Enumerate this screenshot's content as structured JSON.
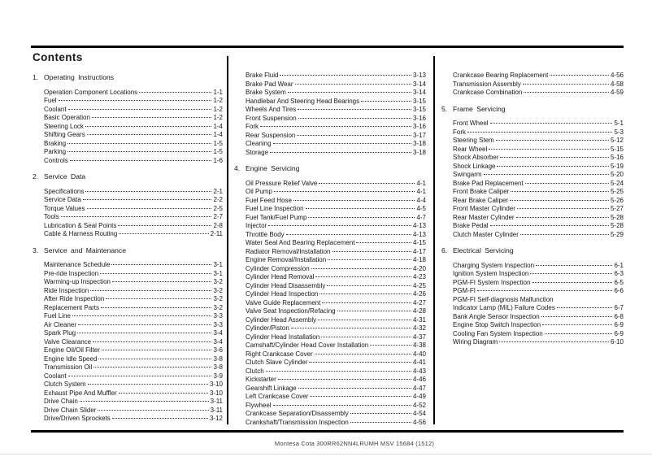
{
  "doc_title": "Contents",
  "footer_text": "Montesa Cota 300RR62NN4LRUMH MSV 15684 (1512)",
  "columns": [
    {
      "blocks": [
        {
          "section": {
            "number": "1.",
            "title": "Operating Instructions"
          }
        },
        {
          "items": [
            {
              "label": "Operation Component Locations",
              "page": "1-1"
            },
            {
              "label": "Fuel",
              "page": "1-2"
            },
            {
              "label": "Coolant",
              "page": "1-2"
            },
            {
              "label": "Basic Operation",
              "page": "1-2"
            },
            {
              "label": "Steering Lock",
              "page": "1-4"
            },
            {
              "label": "Shifting Gears",
              "page": "1-4"
            },
            {
              "label": "Braking",
              "page": "1-5"
            },
            {
              "label": "Parking",
              "page": "1-5"
            },
            {
              "label": "Controls",
              "page": "1-6"
            }
          ]
        },
        {
          "section": {
            "number": "2.",
            "title": "Service Data"
          }
        },
        {
          "items": [
            {
              "label": "Specifications",
              "page": "2-1"
            },
            {
              "label": "Service Data",
              "page": "2-2"
            },
            {
              "label": "Torque Values",
              "page": "2-5"
            },
            {
              "label": "Tools",
              "page": "2-7"
            },
            {
              "label": "Lubrication & Seal Points",
              "page": "2-8"
            },
            {
              "label": "Cable & Harness Routing",
              "page": "2-11"
            }
          ]
        },
        {
          "section": {
            "number": "3.",
            "title": "Service and Maintenance"
          }
        },
        {
          "items": [
            {
              "label": "Maintenance Schedule",
              "page": "3-1"
            },
            {
              "label": "Pre-ride Inspection",
              "page": "3-1"
            },
            {
              "label": "Warming-up Inspection",
              "page": "3-2"
            },
            {
              "label": "Ride Inspection",
              "page": "3-2"
            },
            {
              "label": "After Ride Inspection",
              "page": "3-2"
            },
            {
              "label": "Replacement Parts",
              "page": "3-2"
            },
            {
              "label": "Fuel Line",
              "page": "3-3"
            },
            {
              "label": "Air Cleaner",
              "page": "3-3"
            },
            {
              "label": "Spark Plug",
              "page": "3-4"
            },
            {
              "label": "Valve Clearance",
              "page": "3-4"
            },
            {
              "label": "Engine Oil/Oil Filter",
              "page": "3-6"
            },
            {
              "label": "Engine Idle Speed",
              "page": "3-8"
            },
            {
              "label": "Transmission Oil",
              "page": "3-8"
            },
            {
              "label": "Coolant",
              "page": "3-9"
            },
            {
              "label": "Clutch System",
              "page": "3-10"
            },
            {
              "label": "Exhaust Pipe And Muffler",
              "page": "3-10"
            },
            {
              "label": "Drive Chain",
              "page": "3-11"
            },
            {
              "label": "Drive Chain Slider",
              "page": "3-11"
            },
            {
              "label": "Drive/Driven Sprockets",
              "page": "3-12"
            }
          ]
        }
      ]
    },
    {
      "blocks": [
        {
          "items": [
            {
              "label": "Brake Fluid",
              "page": "3-13"
            },
            {
              "label": "Brake Pad Wear",
              "page": "3-14"
            },
            {
              "label": "Brake System",
              "page": "3-14"
            },
            {
              "label": "Handlebar And Steering Head Bearings",
              "page": "3-15"
            },
            {
              "label": "Wheels And Tires",
              "page": "3-15"
            },
            {
              "label": "Front Suspension",
              "page": "3-16"
            },
            {
              "label": "Fork",
              "page": "3-16"
            },
            {
              "label": "Rear Suspension",
              "page": "3-17"
            },
            {
              "label": "Cleaning",
              "page": "3-18"
            },
            {
              "label": "Storage",
              "page": "3-18"
            }
          ]
        },
        {
          "section": {
            "number": "4.",
            "title": "Engine Servicing"
          }
        },
        {
          "items": [
            {
              "label": "Oil Pressure Relief Valve",
              "page": "4-1"
            },
            {
              "label": "Oil Pump",
              "page": "4-1"
            },
            {
              "label": "Fuel Feed Hose",
              "page": "4-4"
            },
            {
              "label": "Fuel Line Inspection",
              "page": "4-5"
            },
            {
              "label": "Fuel Tank/Fuel Pump",
              "page": "4-7"
            },
            {
              "label": "Injector",
              "page": "4-13"
            },
            {
              "label": "Throttle Body",
              "page": "4-13"
            },
            {
              "label": "Water Seal And Bearing Replacement",
              "page": "4-15"
            },
            {
              "label": "Radiator Removal/Installation",
              "page": "4-17"
            },
            {
              "label": "Engine Removal/Installation",
              "page": "4-18"
            },
            {
              "label": "Cylinder Compression",
              "page": "4-20"
            },
            {
              "label": "Cylinder Head Removal",
              "page": "4-23"
            },
            {
              "label": "Cylinder Head Disassembly",
              "page": "4-25"
            },
            {
              "label": "Cylinder Head Inspection",
              "page": "4-26"
            },
            {
              "label": "Valve Guide Replacement",
              "page": "4-27"
            },
            {
              "label": "Valve Seat Inspection/Refacing",
              "page": "4-28"
            },
            {
              "label": "Cylinder Head Assembly",
              "page": "4-31"
            },
            {
              "label": "Cylinder/Piston",
              "page": "4-32"
            },
            {
              "label": "Cylinder Head Installation",
              "page": "4-37"
            },
            {
              "label": "Camshaft/Cylinder Head Cover Installation",
              "page": "4-38"
            },
            {
              "label": "Right Crankcase Cover",
              "page": "4-40"
            },
            {
              "label": "Clutch Slave Cylinder",
              "page": "4-41"
            },
            {
              "label": "Clutch",
              "page": "4-43"
            },
            {
              "label": "Kickstarter",
              "page": "4-46"
            },
            {
              "label": "Gearshift Linkage",
              "page": "4-47"
            },
            {
              "label": "Left Crankcase Cover",
              "page": "4-49"
            },
            {
              "label": "Flywheel",
              "page": "4-52"
            },
            {
              "label": "Crankcase Separation/Disassembly",
              "page": "4-54"
            },
            {
              "label": "Crankshaft/Transmission Inspection",
              "page": "4-56"
            }
          ]
        }
      ]
    },
    {
      "blocks": [
        {
          "items": [
            {
              "label": "Crankcase Bearing Replacement",
              "page": "4-56"
            },
            {
              "label": "Transmission Assembly",
              "page": "4-58"
            },
            {
              "label": "Crankcase Combination",
              "page": "4-59"
            }
          ]
        },
        {
          "section": {
            "number": "5.",
            "title": "Frame Servicing"
          }
        },
        {
          "items": [
            {
              "label": "Front Wheel",
              "page": "5-1"
            },
            {
              "label": "Fork",
              "page": "5-3"
            },
            {
              "label": "Steering Stem",
              "page": "5-12"
            },
            {
              "label": "Rear Wheel",
              "page": "5-15"
            },
            {
              "label": "Shock Absorber",
              "page": "5-16"
            },
            {
              "label": "Shock Linkage",
              "page": "5-19"
            },
            {
              "label": "Swingarm",
              "page": "5-20"
            },
            {
              "label": "Brake Pad Replacement",
              "page": "5-24"
            },
            {
              "label": "Front Brake Caliper",
              "page": "5-25"
            },
            {
              "label": "Rear Brake Caliper",
              "page": "5-26"
            },
            {
              "label": "Front Master Cylinder",
              "page": "5-27"
            },
            {
              "label": "Rear Master Cylinder",
              "page": "5-28"
            },
            {
              "label": "Brake Pedal",
              "page": "5-28"
            },
            {
              "label": "Clutch Master Cylinder",
              "page": "5-29"
            }
          ]
        },
        {
          "section": {
            "number": "6.",
            "title": "Electrical Servicing"
          }
        },
        {
          "items": [
            {
              "label": "Charging System Inspection",
              "page": "6-1"
            },
            {
              "label": "Ignition System Inspection",
              "page": "6-3"
            },
            {
              "label": "PGM-FI System Inspection",
              "page": "6-5"
            },
            {
              "label": "PGM-FI",
              "page": "6-6"
            },
            {
              "label": "PGM-FI Self-diagnosis Malfunction",
              "page": ""
            },
            {
              "label": "Indicator Lamp (MIL) Failure Codes",
              "page": "6-7"
            },
            {
              "label": "Bank Angle Sensor Inspection",
              "page": "6-8"
            },
            {
              "label": "Engine Stop Switch Inspection",
              "page": "6-9"
            },
            {
              "label": "Cooling Fan System Inspection",
              "page": "6-9"
            },
            {
              "label": "Wiring Diagram",
              "page": "6-10"
            }
          ]
        }
      ]
    }
  ]
}
